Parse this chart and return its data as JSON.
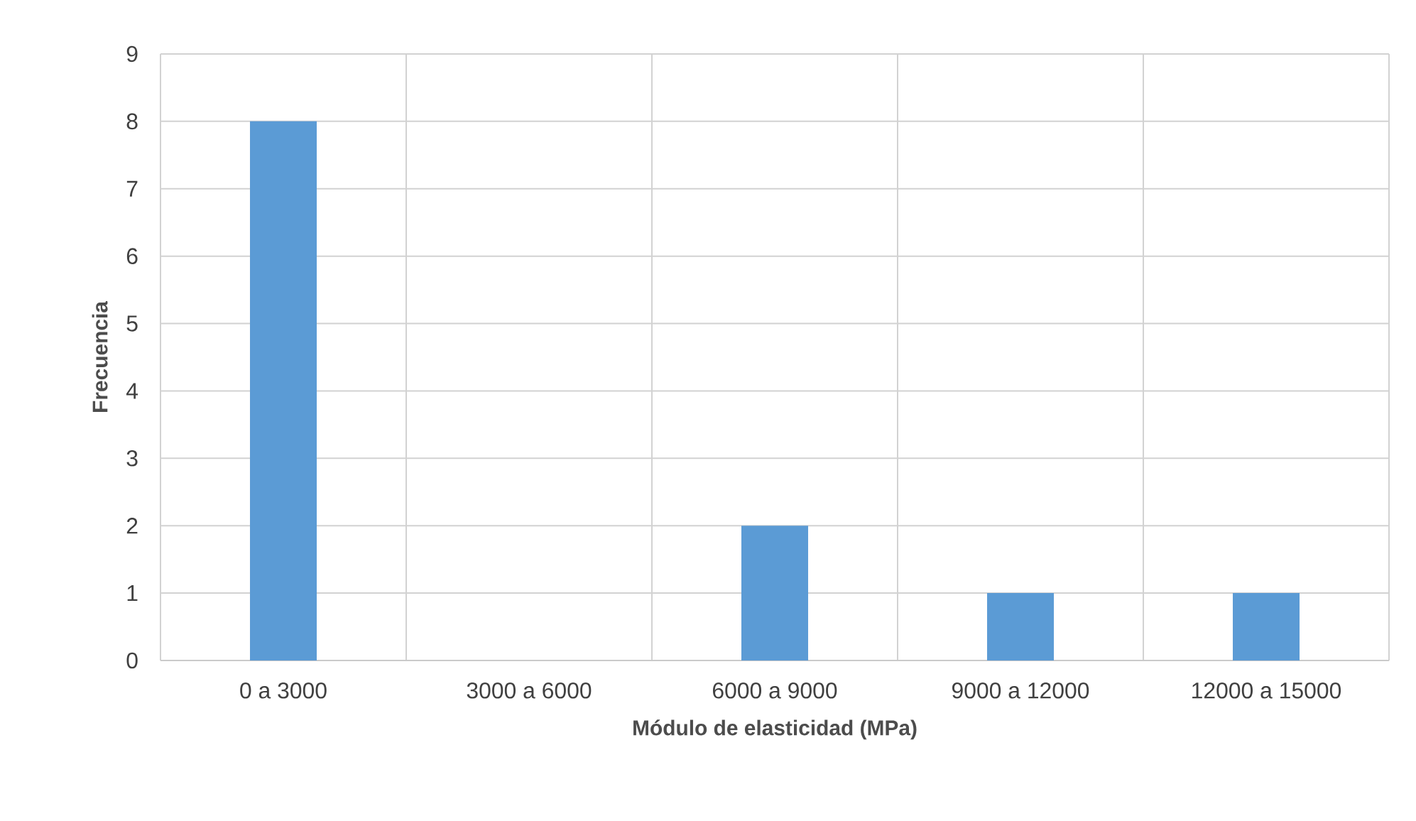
{
  "chart_data": {
    "type": "bar",
    "xlabel": "Módulo de elasticidad (MPa)",
    "ylabel": "Frecuencia",
    "categories": [
      "0 a 3000",
      "3000 a 6000",
      "6000 a 9000",
      "9000 a 12000",
      "12000 a 15000"
    ],
    "values": [
      8,
      0,
      2,
      1,
      1
    ],
    "color": "#5b9bd5",
    "ylim": [
      0,
      9
    ],
    "yticks": [
      0,
      1,
      2,
      3,
      4,
      5,
      6,
      7,
      8,
      9
    ],
    "grid": true
  }
}
